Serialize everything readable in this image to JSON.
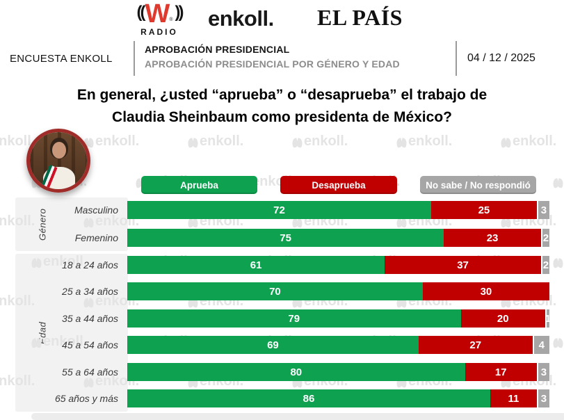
{
  "header": {
    "logos": {
      "wradio": {
        "waves_left": "((",
        "letter": "W",
        "reg": "®",
        "radio": "RADIO"
      },
      "enkoll": "enkoll.",
      "elpais": "EL PAÍS"
    },
    "survey_label": "ENCUESTA ENKOLL",
    "title": "APROBACIÓN PRESIDENCIAL",
    "subtitle": "APROBACIÓN PRESIDENCIAL POR GÉNERO Y EDAD",
    "date": "04 / 12 / 2025"
  },
  "question": {
    "line1": "En general, ¿usted “aprueba” o “desaprueba” el trabajo de",
    "line2": "Claudia Sheinbaum como presidenta de México?"
  },
  "legend": [
    {
      "label": "Aprueba",
      "color": "#0ea150"
    },
    {
      "label": "Desaprueba",
      "color": "#c00000"
    },
    {
      "label": "No sabe / No respondió",
      "color": "#a6a6a6"
    }
  ],
  "watermark": {
    "text": "enkoll."
  },
  "chart_data": {
    "type": "bar",
    "stacked": true,
    "orientation": "horizontal",
    "xlim": [
      0,
      100
    ],
    "series_names": [
      "Aprueba",
      "Desaprueba",
      "No sabe / No respondió"
    ],
    "colors": {
      "aprueba": "#0ea150",
      "desaprueba": "#c00000",
      "ns_nr": "#a6a6a6"
    },
    "groups": [
      {
        "label": "Género",
        "rows": [
          {
            "category": "Masculino",
            "aprueba": 72,
            "desaprueba": 25,
            "ns_nr": 3
          },
          {
            "category": "Femenino",
            "aprueba": 75,
            "desaprueba": 23,
            "ns_nr": 2
          }
        ]
      },
      {
        "label": "Edad",
        "rows": [
          {
            "category": "18 a 24 años",
            "aprueba": 61,
            "desaprueba": 37,
            "ns_nr": 2
          },
          {
            "category": "25 a 34 años",
            "aprueba": 70,
            "desaprueba": 30,
            "ns_nr": 0
          },
          {
            "category": "35 a 44 años",
            "aprueba": 79,
            "desaprueba": 20,
            "ns_nr": 1
          },
          {
            "category": "45 a 54 años",
            "aprueba": 69,
            "desaprueba": 27,
            "ns_nr": 4
          },
          {
            "category": "55 a 64 años",
            "aprueba": 80,
            "desaprueba": 17,
            "ns_nr": 3
          },
          {
            "category": "65 años y más",
            "aprueba": 86,
            "desaprueba": 11,
            "ns_nr": 3
          }
        ]
      }
    ]
  }
}
